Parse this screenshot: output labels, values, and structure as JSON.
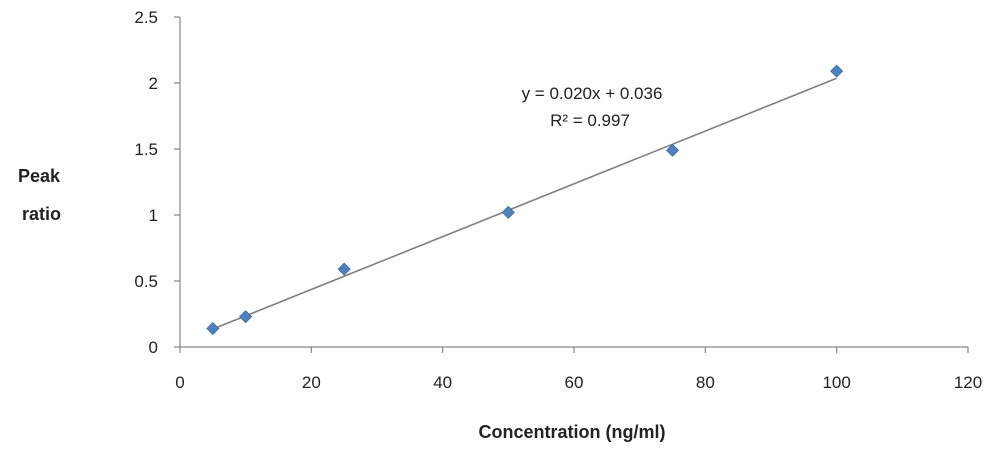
{
  "chart_data": {
    "type": "scatter",
    "title": "",
    "xlabel": "Concentration (ng/ml)",
    "ylabel_lines": [
      "Peak",
      "ratio"
    ],
    "xlim": [
      0,
      120
    ],
    "ylim": [
      0,
      2.5
    ],
    "xticks": [
      "0",
      "20",
      "40",
      "60",
      "80",
      "100",
      "120"
    ],
    "yticks": [
      "0",
      "0.5",
      "1",
      "1.5",
      "2",
      "2.5"
    ],
    "grid": false,
    "legend": "none",
    "series": [
      {
        "x": [
          5,
          10,
          25,
          50,
          75,
          100
        ],
        "y": [
          0.14,
          0.23,
          0.59,
          1.02,
          1.49,
          2.09
        ],
        "color": "#4F81BD",
        "marker": "diamond"
      }
    ],
    "trendline": {
      "slope": 0.02,
      "intercept": 0.036,
      "x_range": [
        5,
        100
      ],
      "color": "#808080"
    },
    "annotations": {
      "equation": "y = 0.020x + 0.036",
      "r_squared": "R² = 0.997"
    }
  }
}
